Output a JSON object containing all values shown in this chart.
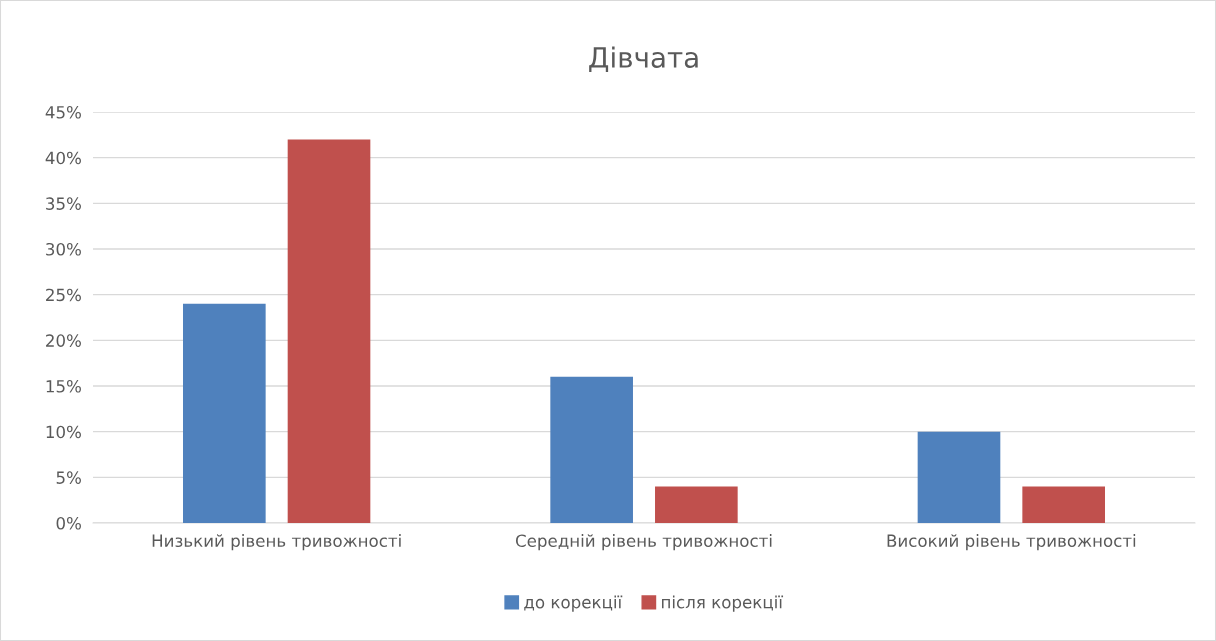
{
  "chart_data": {
    "type": "bar",
    "title": "Дівчата",
    "categories": [
      "Низький рівень тривожності",
      "Середній рівень тривожності",
      "Високий рівень тривожності"
    ],
    "series": [
      {
        "name": "до корекції",
        "color": "#4f81bd",
        "values": [
          24,
          16,
          10
        ]
      },
      {
        "name": "після корекції",
        "color": "#c0504d",
        "values": [
          42,
          4,
          4
        ]
      }
    ],
    "ylim": [
      0,
      45
    ],
    "yticks": [
      {
        "value": 0,
        "label": "0%"
      },
      {
        "value": 5,
        "label": "5%"
      },
      {
        "value": 10,
        "label": "10%"
      },
      {
        "value": 15,
        "label": "15%"
      },
      {
        "value": 20,
        "label": "20%"
      },
      {
        "value": 25,
        "label": "25%"
      },
      {
        "value": 30,
        "label": "30%"
      },
      {
        "value": 35,
        "label": "35%"
      },
      {
        "value": 40,
        "label": "40%"
      },
      {
        "value": 45,
        "label": "45%"
      }
    ],
    "grid": "y",
    "legend": "bottom"
  }
}
